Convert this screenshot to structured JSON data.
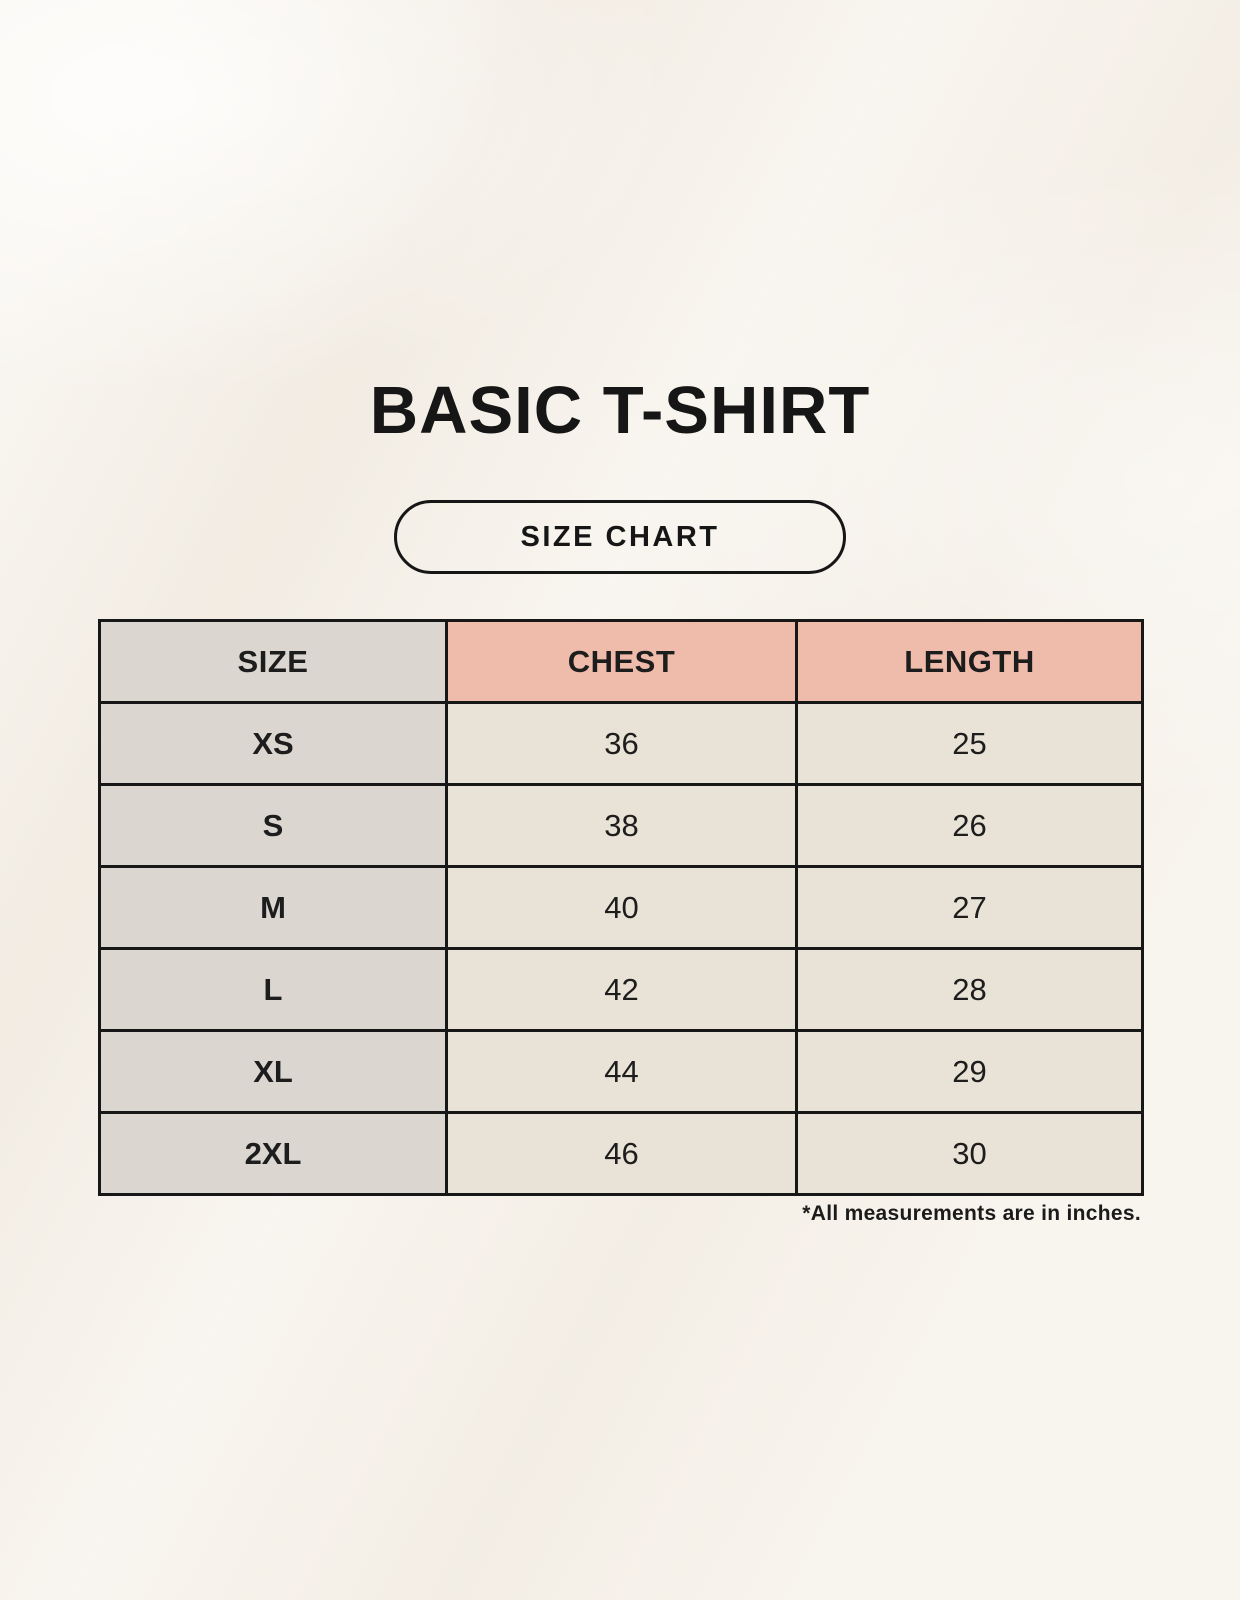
{
  "page": {
    "title": "BASIC T-SHIRT",
    "size_chart_button": "SIZE CHART",
    "footnote": "*All measurements are in inches."
  },
  "table": {
    "headers": {
      "size": "SIZE",
      "chest": "CHEST",
      "length": "LENGTH"
    },
    "rows": [
      {
        "size": "XS",
        "chest": "36",
        "length": "25"
      },
      {
        "size": "S",
        "chest": "38",
        "length": "26"
      },
      {
        "size": "M",
        "chest": "40",
        "length": "27"
      },
      {
        "size": "L",
        "chest": "42",
        "length": "28"
      },
      {
        "size": "XL",
        "chest": "44",
        "length": "29"
      },
      {
        "size": "2XL",
        "chest": "46",
        "length": "30"
      }
    ]
  },
  "colors": {
    "background": "#f6f1e9",
    "header_pink": "#efbcab",
    "size_column_gray": "#dcd6d0",
    "data_cell_beige": "#e9e2d6",
    "border_and_text": "#171717"
  },
  "chart_data": {
    "type": "table",
    "title": "BASIC T-SHIRT",
    "columns": [
      "SIZE",
      "CHEST",
      "LENGTH"
    ],
    "rows": [
      [
        "XS",
        36,
        25
      ],
      [
        "S",
        38,
        26
      ],
      [
        "M",
        40,
        27
      ],
      [
        "L",
        42,
        28
      ],
      [
        "XL",
        44,
        29
      ],
      [
        "2XL",
        46,
        30
      ]
    ],
    "units": "inches",
    "note": "*All measurements are in inches."
  }
}
